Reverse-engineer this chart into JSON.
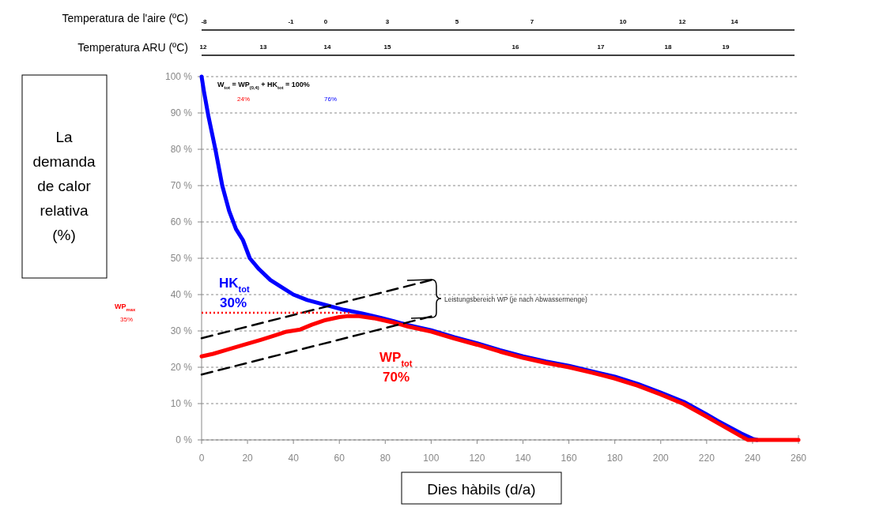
{
  "chart_data": {
    "type": "line",
    "xlabel": "Dies hàbils (d/a)",
    "ylabel": "La demanda de calor relativa (%)",
    "xlim": [
      0,
      260
    ],
    "xticks": [
      0,
      20,
      40,
      60,
      80,
      100,
      120,
      140,
      160,
      180,
      200,
      220,
      240,
      260
    ],
    "ylim": [
      0,
      100
    ],
    "yticks": [
      {
        "value": 0,
        "label": "0 %"
      },
      {
        "value": 10,
        "label": "10 %"
      },
      {
        "value": 20,
        "label": "20 %"
      },
      {
        "value": 30,
        "label": "30 %"
      },
      {
        "value": 40,
        "label": "40 %"
      },
      {
        "value": 50,
        "label": "50 %"
      },
      {
        "value": 60,
        "label": "60 %"
      },
      {
        "value": 70,
        "label": "70 %"
      },
      {
        "value": 80,
        "label": "80 %"
      },
      {
        "value": 90,
        "label": "90 %"
      },
      {
        "value": 100,
        "label": "100 %"
      }
    ],
    "grid": "y",
    "marker": "none",
    "series": [
      {
        "color": "#0000ff",
        "line_style": "solid",
        "x": [
          0,
          1,
          3,
          6,
          9,
          12,
          15,
          18,
          21,
          25,
          30,
          35,
          40,
          46,
          55,
          62,
          70,
          78,
          84,
          90,
          100,
          110,
          120,
          130,
          140,
          150,
          160,
          170,
          180,
          190,
          200,
          210,
          220,
          225,
          230,
          235,
          240,
          242
        ],
        "values": [
          100,
          96,
          89,
          80,
          70,
          63,
          58,
          55,
          50,
          47,
          44,
          42,
          40,
          38.5,
          37,
          35.8,
          34.8,
          33.6,
          32.6,
          31.6,
          30.2,
          28.3,
          26.6,
          24.7,
          23,
          21.6,
          20.4,
          18.9,
          17.4,
          15.4,
          13,
          10.5,
          7,
          5.2,
          3.5,
          1.8,
          0.3,
          0
        ]
      },
      {
        "color": "#ff0000",
        "line_style": "solid",
        "x": [
          0,
          5,
          11,
          18,
          26,
          32,
          37,
          43,
          48,
          54,
          60,
          64,
          68,
          75,
          83,
          90,
          100,
          110,
          120,
          130,
          140,
          150,
          160,
          170,
          180,
          190,
          200,
          210,
          220,
          225,
          230,
          235,
          238,
          242,
          260
        ],
        "values": [
          23,
          23.7,
          24.8,
          26.1,
          27.6,
          28.8,
          29.8,
          30.4,
          31.7,
          33,
          33.8,
          34.1,
          34.1,
          33.5,
          32.4,
          31.2,
          29.8,
          27.9,
          26.2,
          24.3,
          22.6,
          21.2,
          20,
          18.5,
          16.9,
          14.9,
          12.5,
          9.9,
          6.4,
          4.6,
          2.8,
          1,
          0,
          0,
          0
        ]
      },
      {
        "color": "#000000",
        "line_style": "dashed",
        "x": [
          0,
          100
        ],
        "values": [
          28,
          44
        ]
      },
      {
        "color": "#000000",
        "line_style": "dashed",
        "x": [
          0,
          100
        ],
        "values": [
          18,
          34
        ]
      },
      {
        "color": "#ff0000",
        "line_style": "dotted",
        "x": [
          0,
          65
        ],
        "values": [
          35,
          35
        ]
      }
    ],
    "annotations": [
      "W$_{tot}$ = WP$_{(0,4)}$ + HK$_{tot}$ = 100%",
      "24%",
      "76%",
      "HK$_{tot}$",
      "30%",
      "WP$_{tot}$",
      "70%",
      "WP$_{max}$",
      "35%",
      "Leistungsbereich WP (je nach Abwassermenge)",
      "Temperatura de l'aire (ºC)",
      "-8",
      "-1",
      "0",
      "3",
      "5",
      "7",
      "10",
      "12",
      "14",
      "Temperatura ARU (ºC)",
      "12",
      "13",
      "14",
      "15",
      "16",
      "17",
      "18",
      "19"
    ]
  }
}
